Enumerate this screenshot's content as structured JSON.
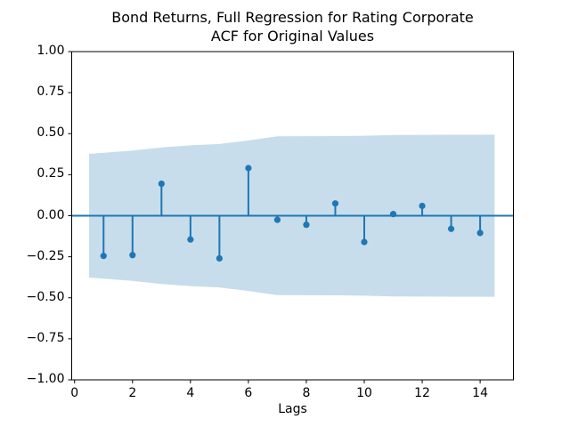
{
  "title": {
    "line1": "Bond Returns, Full Regression for Rating Corporate",
    "line2": "ACF for Original Values"
  },
  "chart_data": {
    "type": "stem",
    "title": "Bond Returns, Full Regression for Rating Corporate\nACF for Original Values",
    "xlabel": "Lags",
    "ylabel": "",
    "xlim": [
      -0.1,
      15.15
    ],
    "ylim": [
      -1.0,
      1.0
    ],
    "grid": false,
    "legend": null,
    "x_ticks": [
      0,
      2,
      4,
      6,
      8,
      10,
      12,
      14
    ],
    "x_tick_labels": [
      "0",
      "2",
      "4",
      "6",
      "8",
      "10",
      "12",
      "14"
    ],
    "y_ticks": [
      1.0,
      0.75,
      0.5,
      0.25,
      0.0,
      -0.25,
      -0.5,
      -0.75,
      -1.0
    ],
    "y_tick_labels": [
      "1.00",
      "0.75",
      "0.50",
      "0.25",
      "0.00",
      "−0.25",
      "−0.50",
      "−0.75",
      "−1.00"
    ],
    "series": [
      {
        "name": "acf",
        "x": [
          1,
          2,
          3,
          4,
          5,
          6,
          7,
          8,
          9,
          10,
          11,
          12,
          13,
          14
        ],
        "values": [
          -0.245,
          -0.24,
          0.195,
          -0.145,
          -0.26,
          0.29,
          -0.025,
          -0.055,
          0.075,
          -0.16,
          0.01,
          0.06,
          -0.08,
          -0.105
        ]
      }
    ],
    "confidence_band": {
      "x": [
        0.5,
        2,
        3,
        4,
        5,
        6,
        7,
        8,
        9,
        10,
        11,
        12,
        13,
        14.5
      ],
      "upper": [
        0.377,
        0.397,
        0.416,
        0.429,
        0.437,
        0.459,
        0.484,
        0.4845,
        0.485,
        0.487,
        0.492,
        0.4925,
        0.493,
        0.494
      ],
      "lower": [
        -0.377,
        -0.397,
        -0.416,
        -0.429,
        -0.437,
        -0.459,
        -0.484,
        -0.4845,
        -0.485,
        -0.487,
        -0.492,
        -0.4925,
        -0.493,
        -0.494
      ]
    },
    "baseline": 0.0,
    "colors": {
      "stem": "#1f77b4",
      "marker": "#1f77b4",
      "baseline": "#1f77b4",
      "band": "#1f77b4",
      "band_opacity": 0.25,
      "axes": "#000000",
      "background": "#ffffff"
    }
  }
}
